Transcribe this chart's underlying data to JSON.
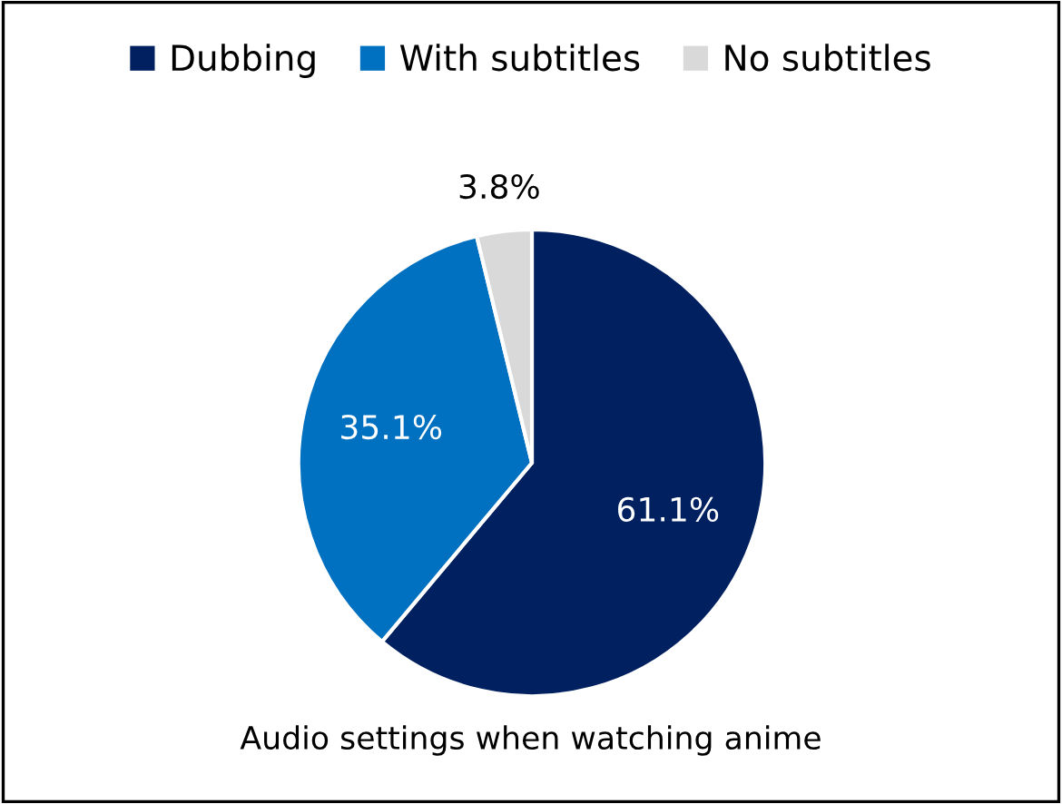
{
  "chart_data": {
    "type": "pie",
    "title": "Audio settings when watching anime",
    "categories": [
      "Dubbing",
      "With subtitles",
      "No subtitles"
    ],
    "values": [
      61.1,
      35.1,
      3.8
    ],
    "colors": [
      "#002060",
      "#0070c0",
      "#d9d9d9"
    ],
    "value_labels": [
      "61.1%",
      "35.1%",
      "3.8%"
    ],
    "legend": "top"
  }
}
